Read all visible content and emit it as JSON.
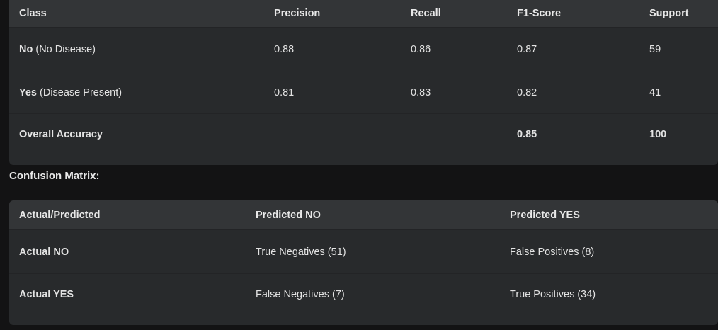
{
  "metrics_table": {
    "headers": [
      "Class",
      "Precision",
      "Recall",
      "F1-Score",
      "Support"
    ],
    "rows": [
      {
        "class_bold": "No",
        "class_rest": " (No Disease)",
        "precision": "0.88",
        "recall": "0.86",
        "f1": "0.87",
        "support": "59"
      },
      {
        "class_bold": "Yes",
        "class_rest": " (Disease Present)",
        "precision": "0.81",
        "recall": "0.83",
        "f1": "0.82",
        "support": "41"
      }
    ],
    "summary": {
      "label": "Overall Accuracy",
      "precision": "",
      "recall": "",
      "f1": "0.85",
      "support": "100"
    }
  },
  "confusion_matrix": {
    "title": "Confusion Matrix:",
    "headers": [
      "Actual/Predicted",
      "Predicted NO",
      "Predicted YES"
    ],
    "rows": [
      {
        "label": "Actual NO",
        "pred_no": "True Negatives (51)",
        "pred_yes": "False Positives (8)"
      },
      {
        "label": "Actual YES",
        "pred_no": "False Negatives (7)",
        "pred_yes": "True Positives (34)"
      }
    ]
  }
}
